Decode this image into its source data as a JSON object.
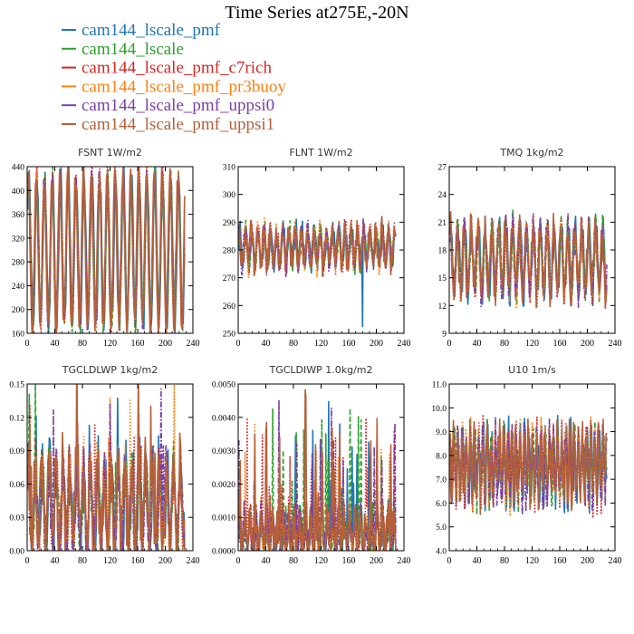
{
  "figure": {
    "title": "Time Series at275E,-20N"
  },
  "legend": [
    {
      "name": "cam144_lscale_pmf",
      "color": "#1f77b4",
      "style": "solid"
    },
    {
      "name": "cam144_lscale",
      "color": "#2ca02c",
      "style": "dashed"
    },
    {
      "name": "cam144_lscale_pmf_c7rich",
      "color": "#d62728",
      "style": "dotted"
    },
    {
      "name": "cam144_lscale_pmf_pr3buoy",
      "color": "#ff7f0e",
      "style": "dotted"
    },
    {
      "name": "cam144_lscale_pmf_uppsi0",
      "color": "#7b3fa6",
      "style": "dashdot"
    },
    {
      "name": "cam144_lscale_pmf_uppsi1",
      "color": "#b5603a",
      "style": "solid"
    }
  ],
  "chart_data": [
    {
      "type": "line",
      "title": "FSNT   1W/m2",
      "xlim": [
        0,
        240
      ],
      "ylim": [
        160,
        440
      ],
      "xticks": [
        "0",
        "40",
        "80",
        "120",
        "160",
        "200",
        "240"
      ],
      "yticks": [
        "160",
        "200",
        "240",
        "280",
        "320",
        "360",
        "400",
        "440"
      ],
      "pattern": {
        "base": 300,
        "amp": 125,
        "period": 11.4,
        "noise": 0.15,
        "dips": 0,
        "spikes": 0
      },
      "series": [
        {
          "name": "cam144_lscale_pmf"
        },
        {
          "name": "cam144_lscale"
        },
        {
          "name": "cam144_lscale_pmf_c7rich"
        },
        {
          "name": "cam144_lscale_pmf_pr3buoy"
        },
        {
          "name": "cam144_lscale_pmf_uppsi0"
        },
        {
          "name": "cam144_lscale_pmf_uppsi1"
        }
      ]
    },
    {
      "type": "line",
      "title": "FLNT   1W/m2",
      "xlim": [
        0,
        240
      ],
      "ylim": [
        250,
        310
      ],
      "xticks": [
        "0",
        "40",
        "80",
        "120",
        "160",
        "200",
        "240"
      ],
      "yticks": [
        "250",
        "260",
        "270",
        "280",
        "290",
        "300",
        "310"
      ],
      "pattern": {
        "base": 281,
        "amp": 6,
        "period": 9,
        "noise": 0.6,
        "dips": 1,
        "spikes": 0
      },
      "series": [
        {
          "name": "cam144_lscale_pmf"
        },
        {
          "name": "cam144_lscale"
        },
        {
          "name": "cam144_lscale_pmf_c7rich"
        },
        {
          "name": "cam144_lscale_pmf_pr3buoy"
        },
        {
          "name": "cam144_lscale_pmf_uppsi0"
        },
        {
          "name": "cam144_lscale_pmf_uppsi1"
        }
      ]
    },
    {
      "type": "line",
      "title": "TMQ   1kg/m2",
      "xlim": [
        0,
        240
      ],
      "ylim": [
        9,
        27
      ],
      "xticks": [
        "0",
        "40",
        "80",
        "120",
        "160",
        "200",
        "240"
      ],
      "yticks": [
        "9",
        "12",
        "15",
        "18",
        "21",
        "24",
        "27"
      ],
      "pattern": {
        "base": 17,
        "amp": 3.5,
        "period": 10,
        "noise": 0.45,
        "dips": 0,
        "spikes": 0
      },
      "series": [
        {
          "name": "cam144_lscale_pmf"
        },
        {
          "name": "cam144_lscale"
        },
        {
          "name": "cam144_lscale_pmf_c7rich"
        },
        {
          "name": "cam144_lscale_pmf_pr3buoy"
        },
        {
          "name": "cam144_lscale_pmf_uppsi0"
        },
        {
          "name": "cam144_lscale_pmf_uppsi1"
        }
      ]
    },
    {
      "type": "line",
      "title": "TGCLDLWP   1kg/m2",
      "xlim": [
        0,
        240
      ],
      "ylim": [
        0,
        0.15
      ],
      "xticks": [
        "0",
        "40",
        "80",
        "120",
        "160",
        "200",
        "240"
      ],
      "yticks": [
        "0.00",
        "0.03",
        "0.06",
        "0.09",
        "0.12",
        "0.15"
      ],
      "pattern": {
        "base": 0.04,
        "amp": 0.035,
        "period": 10,
        "noise": 0.8,
        "dips": 0,
        "spikes": 2,
        "floor": 0.0
      },
      "series": [
        {
          "name": "cam144_lscale_pmf"
        },
        {
          "name": "cam144_lscale"
        },
        {
          "name": "cam144_lscale_pmf_c7rich"
        },
        {
          "name": "cam144_lscale_pmf_pr3buoy"
        },
        {
          "name": "cam144_lscale_pmf_uppsi0"
        },
        {
          "name": "cam144_lscale_pmf_uppsi1"
        }
      ]
    },
    {
      "type": "line",
      "title": "TGCLDIWP   1.0kg/m2",
      "xlim": [
        0,
        240
      ],
      "ylim": [
        0,
        0.005
      ],
      "xticks": [
        "0",
        "40",
        "80",
        "120",
        "160",
        "200",
        "240"
      ],
      "yticks": [
        "0.0000",
        "0.0010",
        "0.0020",
        "0.0030",
        "0.0040",
        "0.0050"
      ],
      "pattern": {
        "base": 0.0005,
        "amp": 0.0005,
        "period": 8,
        "noise": 1.2,
        "dips": 0,
        "spikes": 4,
        "floor": 0.0
      },
      "series": [
        {
          "name": "cam144_lscale_pmf"
        },
        {
          "name": "cam144_lscale"
        },
        {
          "name": "cam144_lscale_pmf_c7rich"
        },
        {
          "name": "cam144_lscale_pmf_pr3buoy"
        },
        {
          "name": "cam144_lscale_pmf_uppsi0"
        },
        {
          "name": "cam144_lscale_pmf_uppsi1"
        }
      ]
    },
    {
      "type": "line",
      "title": "U10   1m/s",
      "xlim": [
        0,
        240
      ],
      "ylim": [
        4,
        11
      ],
      "xticks": [
        "0",
        "40",
        "80",
        "120",
        "160",
        "200",
        "240"
      ],
      "yticks": [
        "4.0",
        "5.0",
        "6.0",
        "7.0",
        "8.0",
        "9.0",
        "10.0",
        "11.0"
      ],
      "pattern": {
        "base": 7.6,
        "amp": 1.1,
        "period": 6,
        "noise": 0.9,
        "dips": 0,
        "spikes": 0
      },
      "series": [
        {
          "name": "cam144_lscale_pmf"
        },
        {
          "name": "cam144_lscale"
        },
        {
          "name": "cam144_lscale_pmf_c7rich"
        },
        {
          "name": "cam144_lscale_pmf_pr3buoy"
        },
        {
          "name": "cam144_lscale_pmf_uppsi0"
        },
        {
          "name": "cam144_lscale_pmf_uppsi1"
        }
      ]
    }
  ]
}
